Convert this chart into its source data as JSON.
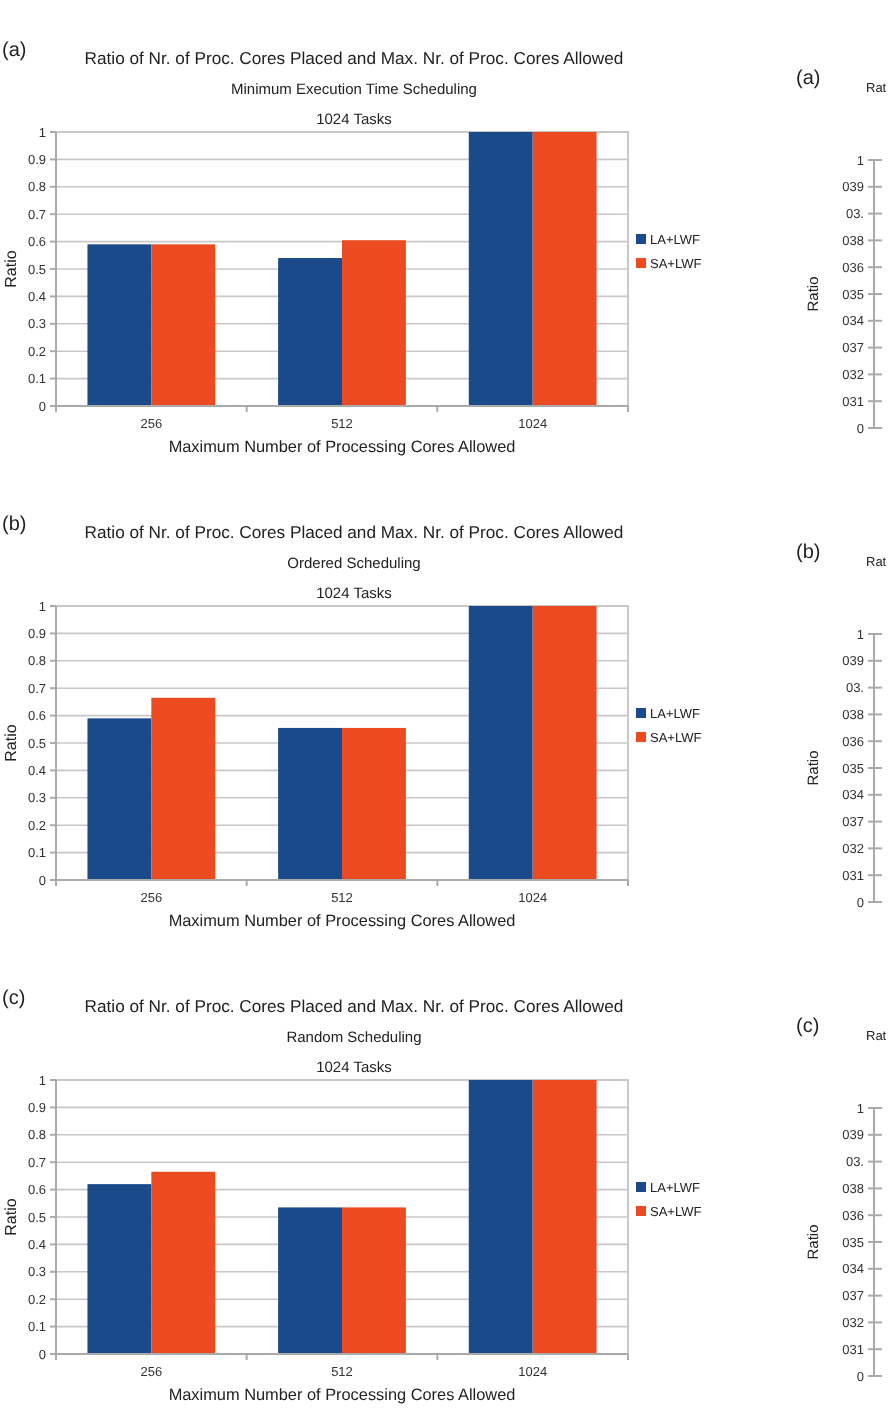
{
  "chart_data": [
    {
      "type": "bar",
      "title": "Ratio of Nr. of Proc. Cores Placed and Max. Nr. of Proc. Cores Allowed",
      "subtitle": "Minimum Execution Time Scheduling\n1024 Tasks",
      "annotations": [
        "(a)"
      ],
      "xlabel": "Maximum Number of Processing Cores Allowed",
      "ylabel": "Ratio",
      "categories": [
        "256",
        "512",
        "1024"
      ],
      "ylim": [
        0,
        1
      ],
      "yticks": [
        0,
        0.1,
        0.2,
        0.3,
        0.4,
        0.5,
        0.6,
        0.7,
        0.8,
        0.9,
        1
      ],
      "grid": "y",
      "legend": "right",
      "series": [
        {
          "name": "LA+LWF",
          "color": "#1a4a8a",
          "values": [
            0.59,
            0.54,
            1
          ]
        },
        {
          "name": "SA+LWF",
          "color": "#ec4a20",
          "values": [
            0.59,
            0.605,
            1
          ]
        }
      ]
    },
    {
      "type": "other",
      "title": "Rat",
      "annotations": [
        "(a)",
        "1",
        "039",
        "03.",
        "038",
        "036",
        "035",
        "034",
        "037",
        "032",
        "031",
        "0"
      ],
      "ylabel": "Ratio"
    },
    {
      "type": "bar",
      "title": "Ratio of Nr. of Proc. Cores Placed and Max. Nr. of Proc. Cores Allowed",
      "subtitle": "Ordered Scheduling\n1024 Tasks",
      "annotations": [
        "(b)"
      ],
      "xlabel": "Maximum Number of Processing Cores Allowed",
      "ylabel": "Ratio",
      "categories": [
        "256",
        "512",
        "1024"
      ],
      "ylim": [
        0,
        1
      ],
      "yticks": [
        0,
        0.1,
        0.2,
        0.3,
        0.4,
        0.5,
        0.6,
        0.7,
        0.8,
        0.9,
        1
      ],
      "grid": "y",
      "legend": "right",
      "series": [
        {
          "name": "LA+LWF",
          "color": "#1a4a8a",
          "values": [
            0.59,
            0.555,
            1
          ]
        },
        {
          "name": "SA+LWF",
          "color": "#ec4a20",
          "values": [
            0.665,
            0.555,
            1
          ]
        }
      ]
    },
    {
      "type": "other",
      "title": "Rat",
      "annotations": [
        "(b)",
        "1",
        "039",
        "03.",
        "038",
        "036",
        "035",
        "034",
        "037",
        "032",
        "031",
        "0"
      ],
      "ylabel": "Ratio"
    },
    {
      "type": "bar",
      "title": "Ratio of Nr. of Proc. Cores Placed and Max. Nr. of Proc. Cores Allowed",
      "subtitle": "Random Scheduling\n1024 Tasks",
      "annotations": [
        "(c)"
      ],
      "xlabel": "Maximum Number of Processing Cores Allowed",
      "ylabel": "Ratio",
      "categories": [
        "256",
        "512",
        "1024"
      ],
      "ylim": [
        0,
        1
      ],
      "yticks": [
        0,
        0.1,
        0.2,
        0.3,
        0.4,
        0.5,
        0.6,
        0.7,
        0.8,
        0.9,
        1
      ],
      "grid": "y",
      "legend": "right",
      "series": [
        {
          "name": "LA+LWF",
          "color": "#1a4a8a",
          "values": [
            0.62,
            0.535,
            1
          ]
        },
        {
          "name": "SA+LWF",
          "color": "#ec4a20",
          "values": [
            0.665,
            0.535,
            1
          ]
        }
      ]
    },
    {
      "type": "other",
      "title": "Rat",
      "annotations": [
        "(c)",
        "1",
        "039",
        "03.",
        "038",
        "036",
        "035",
        "034",
        "037",
        "032",
        "031",
        "0"
      ],
      "ylabel": "Ratio"
    }
  ]
}
